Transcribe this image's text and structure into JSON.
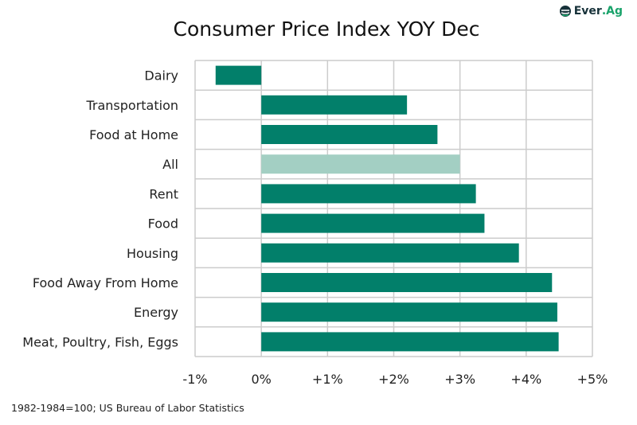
{
  "chart_data": {
    "type": "bar",
    "orientation": "horizontal",
    "title": "Consumer Price Index YOY Dec",
    "categories": [
      "Dairy",
      "Transportation",
      "Food at Home",
      "All",
      "Rent",
      "Food",
      "Housing",
      "Food Away From Home",
      "Energy",
      "Meat, Poultry, Fish, Eggs"
    ],
    "values": [
      -0.69,
      2.2,
      2.66,
      3.0,
      3.24,
      3.37,
      3.89,
      4.39,
      4.47,
      4.49
    ],
    "unit": "%",
    "xlim": [
      -1,
      5
    ],
    "xticks": [
      -1,
      0,
      1,
      2,
      3,
      4,
      5
    ],
    "xtick_labels": [
      "-1%",
      "0%",
      "+1%",
      "+2%",
      "+3%",
      "+4%",
      "+5%"
    ],
    "grid": true,
    "colors": {
      "bar": "#027f6a",
      "highlight": "#a3cfc3",
      "grid": "#cccccc"
    },
    "highlight_category": "All"
  },
  "source": "1982-1984=100; US Bureau of Labor Statistics",
  "logo": {
    "text_main": "Ever",
    "text_accent": ".Ag",
    "icon": "ever-ag-logo-icon"
  }
}
